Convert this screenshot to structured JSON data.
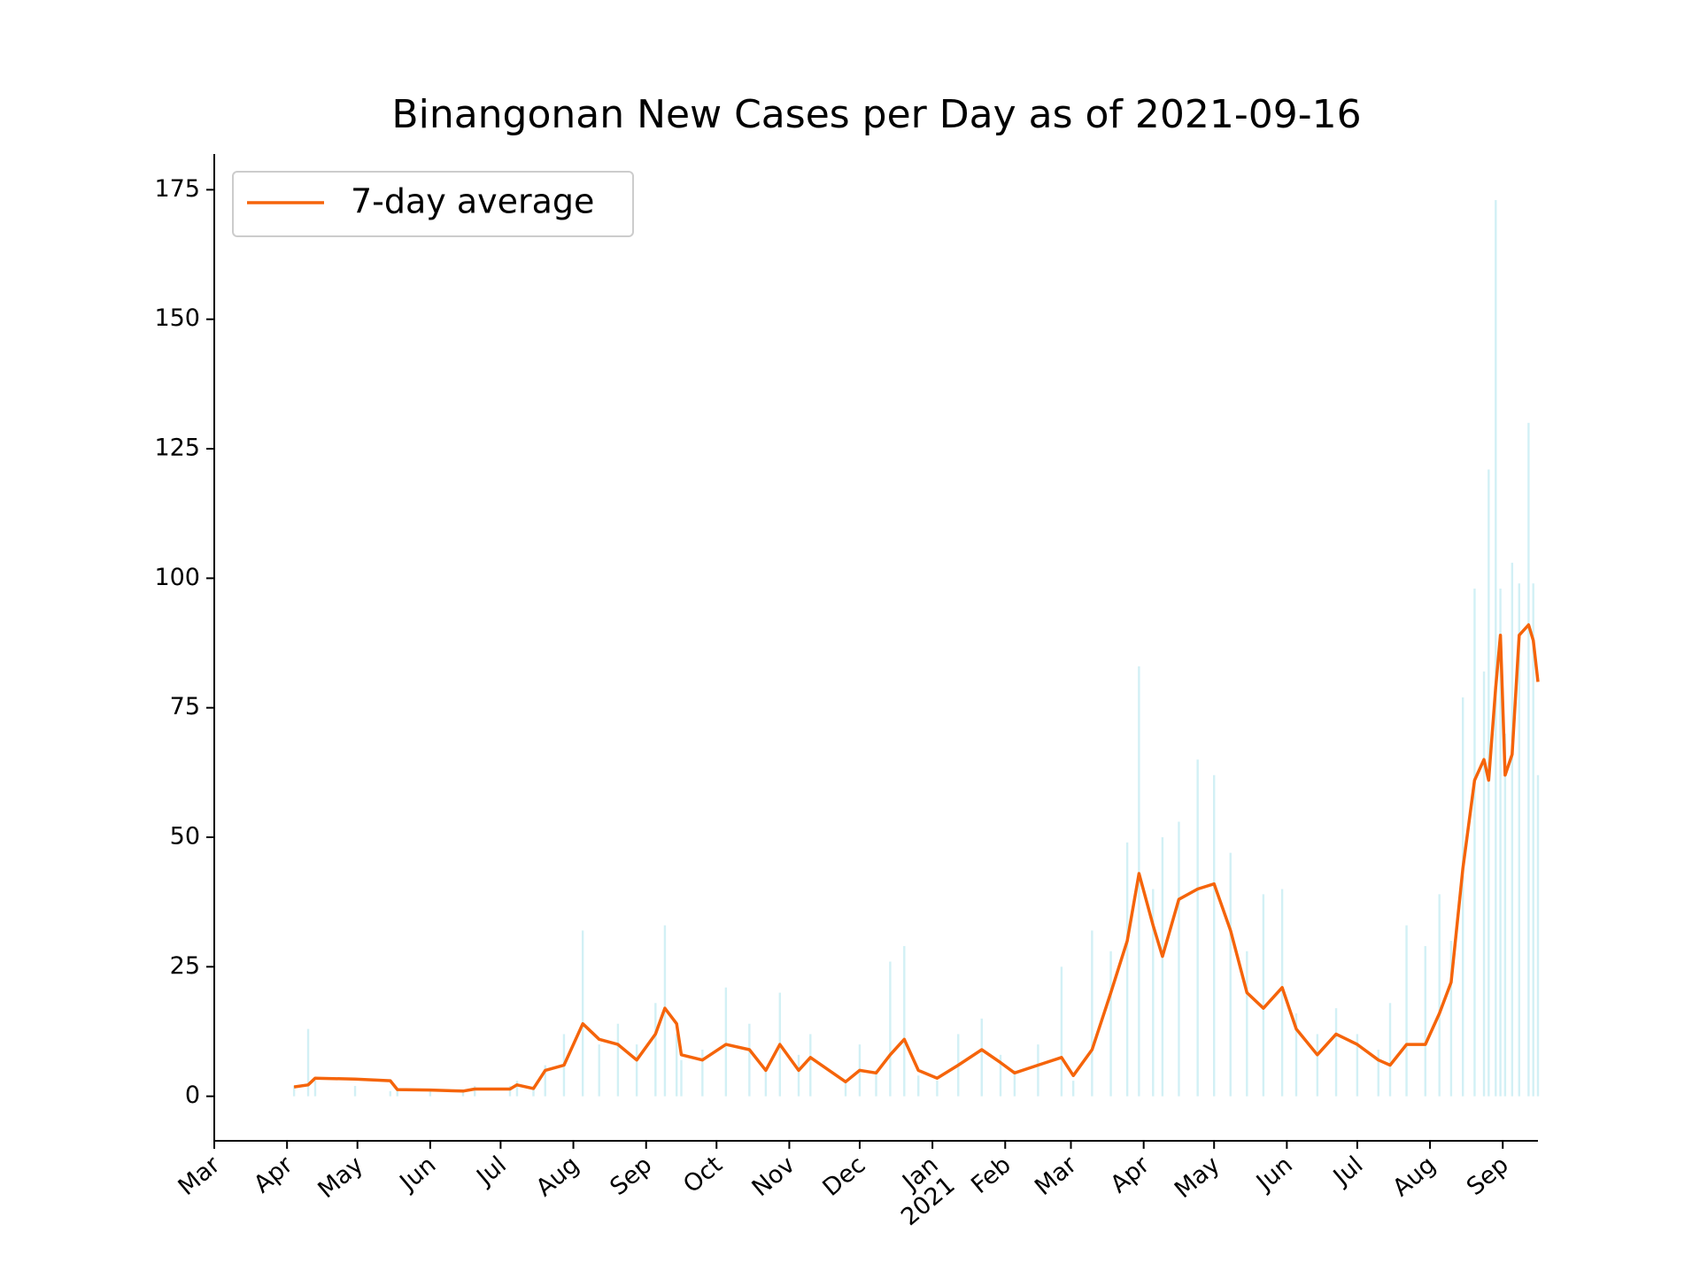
{
  "chart_data": {
    "type": "line",
    "title": "Binangonan New Cases per Day as of 2021-09-16",
    "x": [
      "2020-04-04",
      "2020-04-10",
      "2020-04-13",
      "2020-04-30",
      "2020-05-15",
      "2020-05-18",
      "2020-06-01",
      "2020-06-15",
      "2020-06-20",
      "2020-07-05",
      "2020-07-08",
      "2020-07-15",
      "2020-07-20",
      "2020-07-28",
      "2020-08-05",
      "2020-08-12",
      "2020-08-20",
      "2020-08-28",
      "2020-09-05",
      "2020-09-09",
      "2020-09-14",
      "2020-09-16",
      "2020-09-25",
      "2020-10-05",
      "2020-10-15",
      "2020-10-22",
      "2020-10-28",
      "2020-11-05",
      "2020-11-10",
      "2020-11-25",
      "2020-12-01",
      "2020-12-08",
      "2020-12-14",
      "2020-12-20",
      "2020-12-26",
      "2021-01-03",
      "2021-01-12",
      "2021-01-22",
      "2021-01-30",
      "2021-02-05",
      "2021-02-15",
      "2021-02-25",
      "2021-03-02",
      "2021-03-10",
      "2021-03-18",
      "2021-03-25",
      "2021-03-30",
      "2021-04-05",
      "2021-04-09",
      "2021-04-16",
      "2021-04-24",
      "2021-05-01",
      "2021-05-08",
      "2021-05-15",
      "2021-05-22",
      "2021-05-30",
      "2021-06-05",
      "2021-06-14",
      "2021-06-22",
      "2021-07-01",
      "2021-07-10",
      "2021-07-15",
      "2021-07-22",
      "2021-07-30",
      "2021-08-05",
      "2021-08-10",
      "2021-08-15",
      "2021-08-20",
      "2021-08-24",
      "2021-08-26",
      "2021-08-29",
      "2021-08-31",
      "2021-09-02",
      "2021-09-05",
      "2021-09-08",
      "2021-09-12",
      "2021-09-14",
      "2021-09-16"
    ],
    "series": [
      {
        "name": "7-day average",
        "color": "#f5640a",
        "values": [
          1.8,
          2.2,
          3.5,
          3.3,
          3.0,
          1.3,
          1.2,
          1.0,
          1.4,
          1.4,
          2.2,
          1.5,
          5.0,
          6.0,
          14.0,
          11.0,
          10.0,
          7.0,
          12.0,
          17.0,
          14.0,
          8.0,
          7.0,
          10.0,
          9.0,
          5.0,
          10.0,
          5.0,
          7.5,
          2.8,
          5.0,
          4.5,
          8.0,
          11.0,
          5.0,
          3.5,
          6.0,
          9.0,
          6.5,
          4.5,
          6.0,
          7.5,
          4.0,
          9.0,
          20.0,
          30.0,
          43.0,
          33.0,
          27.0,
          38.0,
          40.0,
          41.0,
          32.0,
          20.0,
          17.0,
          21.0,
          13.0,
          8.0,
          12.0,
          10.0,
          7.0,
          6.0,
          10.0,
          10.0,
          16.0,
          22.0,
          44.0,
          61.0,
          65.0,
          61.0,
          79.0,
          89.0,
          62.0,
          66.0,
          89.0,
          91.0,
          88.0,
          80.0
        ]
      }
    ],
    "bars": {
      "color": "#d2f0f5",
      "values": [
        2,
        13,
        3,
        2,
        1,
        1,
        1,
        1,
        2,
        2,
        3,
        2,
        6,
        12,
        32,
        10,
        14,
        10,
        18,
        33,
        12,
        7,
        9,
        21,
        14,
        5,
        20,
        8,
        12,
        3,
        10,
        5,
        26,
        29,
        4,
        3,
        12,
        15,
        8,
        5,
        10,
        25,
        3,
        32,
        28,
        49,
        83,
        40,
        50,
        53,
        65,
        62,
        47,
        28,
        39,
        40,
        16,
        12,
        17,
        12,
        9,
        18,
        33,
        29,
        39,
        30,
        77,
        98,
        82,
        121,
        173,
        98,
        70,
        103,
        99,
        130,
        99,
        62
      ]
    },
    "xlim": [
      "2020-03-01",
      "2021-09-16"
    ],
    "ylim": [
      -8.6,
      181.9
    ],
    "yticks": [
      0,
      25,
      50,
      75,
      100,
      125,
      150,
      175
    ],
    "xticks": [
      {
        "value": "2020-03-01",
        "label": "Mar"
      },
      {
        "value": "2020-04-01",
        "label": "Apr"
      },
      {
        "value": "2020-05-01",
        "label": "May"
      },
      {
        "value": "2020-06-01",
        "label": "Jun"
      },
      {
        "value": "2020-07-01",
        "label": "Jul"
      },
      {
        "value": "2020-08-01",
        "label": "Aug"
      },
      {
        "value": "2020-09-01",
        "label": "Sep"
      },
      {
        "value": "2020-10-01",
        "label": "Oct"
      },
      {
        "value": "2020-11-01",
        "label": "Nov"
      },
      {
        "value": "2020-12-01",
        "label": "Dec"
      },
      {
        "value": "2021-01-01",
        "label": "Jan\n2021"
      },
      {
        "value": "2021-02-01",
        "label": "Feb"
      },
      {
        "value": "2021-03-01",
        "label": "Mar"
      },
      {
        "value": "2021-04-01",
        "label": "Apr"
      },
      {
        "value": "2021-05-01",
        "label": "May"
      },
      {
        "value": "2021-06-01",
        "label": "Jun"
      },
      {
        "value": "2021-07-01",
        "label": "Jul"
      },
      {
        "value": "2021-08-01",
        "label": "Aug"
      },
      {
        "value": "2021-09-01",
        "label": "Sep"
      }
    ],
    "legend": "upper left"
  }
}
